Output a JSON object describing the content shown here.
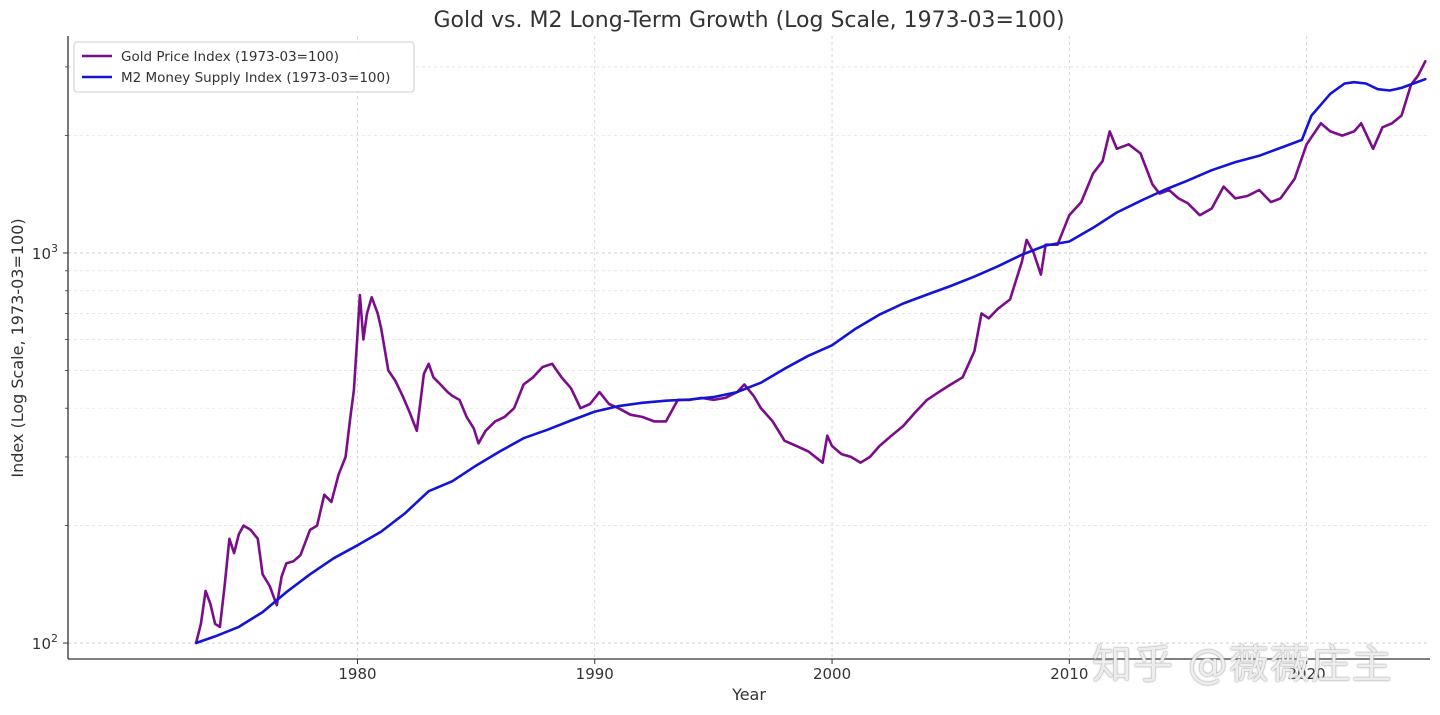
{
  "chart_data": {
    "type": "line",
    "title": "Gold vs. M2 Long-Term Growth (Log Scale, 1973-03=100)",
    "xlabel": "Year",
    "ylabel": "Index (Log Scale, 1973-03=100)",
    "xlim": [
      1967.8,
      2025.2
    ],
    "ylim_log": [
      91,
      3600
    ],
    "yscale": "log",
    "x_ticks": [
      {
        "value": 1980,
        "label": "1980"
      },
      {
        "value": 1990,
        "label": "1990"
      },
      {
        "value": 2000,
        "label": "2000"
      },
      {
        "value": 2010,
        "label": "2010"
      },
      {
        "value": 2020,
        "label": "2020"
      }
    ],
    "y_ticks": [
      {
        "value": 100,
        "base": "10",
        "exp": "2"
      },
      {
        "value": 1000,
        "base": "10",
        "exp": "3"
      }
    ],
    "grid": true,
    "legend_position": "top-left",
    "series": [
      {
        "name": "Gold Price Index (1973-03=100)",
        "color": "#7B0D8A",
        "points": [
          [
            1973.2,
            100
          ],
          [
            1973.4,
            112
          ],
          [
            1973.6,
            136
          ],
          [
            1973.8,
            126
          ],
          [
            1974.0,
            112
          ],
          [
            1974.2,
            110
          ],
          [
            1974.4,
            140
          ],
          [
            1974.6,
            185
          ],
          [
            1974.8,
            170
          ],
          [
            1975.0,
            190
          ],
          [
            1975.2,
            200
          ],
          [
            1975.5,
            195
          ],
          [
            1975.8,
            185
          ],
          [
            1976.0,
            150
          ],
          [
            1976.3,
            140
          ],
          [
            1976.6,
            125
          ],
          [
            1976.8,
            148
          ],
          [
            1977.0,
            160
          ],
          [
            1977.3,
            162
          ],
          [
            1977.6,
            168
          ],
          [
            1978.0,
            195
          ],
          [
            1978.3,
            200
          ],
          [
            1978.6,
            240
          ],
          [
            1978.9,
            230
          ],
          [
            1979.2,
            270
          ],
          [
            1979.5,
            300
          ],
          [
            1979.7,
            380
          ],
          [
            1979.85,
            445
          ],
          [
            1980.0,
            620
          ],
          [
            1980.1,
            780
          ],
          [
            1980.25,
            600
          ],
          [
            1980.4,
            700
          ],
          [
            1980.6,
            770
          ],
          [
            1980.85,
            700
          ],
          [
            1981.0,
            640
          ],
          [
            1981.3,
            500
          ],
          [
            1981.6,
            470
          ],
          [
            1981.9,
            430
          ],
          [
            1982.2,
            390
          ],
          [
            1982.5,
            350
          ],
          [
            1982.8,
            490
          ],
          [
            1983.0,
            520
          ],
          [
            1983.2,
            480
          ],
          [
            1983.5,
            460
          ],
          [
            1983.8,
            440
          ],
          [
            1984.0,
            430
          ],
          [
            1984.3,
            420
          ],
          [
            1984.6,
            380
          ],
          [
            1984.9,
            355
          ],
          [
            1985.1,
            325
          ],
          [
            1985.4,
            350
          ],
          [
            1985.8,
            370
          ],
          [
            1986.2,
            380
          ],
          [
            1986.6,
            400
          ],
          [
            1987.0,
            460
          ],
          [
            1987.4,
            480
          ],
          [
            1987.8,
            510
          ],
          [
            1988.2,
            520
          ],
          [
            1988.6,
            480
          ],
          [
            1989.0,
            450
          ],
          [
            1989.4,
            400
          ],
          [
            1989.8,
            410
          ],
          [
            1990.2,
            440
          ],
          [
            1990.6,
            410
          ],
          [
            1991.0,
            400
          ],
          [
            1991.5,
            385
          ],
          [
            1992.0,
            380
          ],
          [
            1992.5,
            370
          ],
          [
            1993.0,
            370
          ],
          [
            1993.5,
            420
          ],
          [
            1994.0,
            420
          ],
          [
            1994.5,
            425
          ],
          [
            1995.0,
            420
          ],
          [
            1995.5,
            425
          ],
          [
            1996.0,
            440
          ],
          [
            1996.3,
            460
          ],
          [
            1996.7,
            430
          ],
          [
            1997.0,
            400
          ],
          [
            1997.5,
            370
          ],
          [
            1998.0,
            330
          ],
          [
            1998.5,
            320
          ],
          [
            1999.0,
            310
          ],
          [
            1999.6,
            290
          ],
          [
            1999.8,
            340
          ],
          [
            2000.0,
            320
          ],
          [
            2000.4,
            305
          ],
          [
            2000.8,
            300
          ],
          [
            2001.2,
            290
          ],
          [
            2001.6,
            300
          ],
          [
            2002.0,
            320
          ],
          [
            2002.5,
            340
          ],
          [
            2003.0,
            360
          ],
          [
            2003.5,
            390
          ],
          [
            2004.0,
            420
          ],
          [
            2004.5,
            440
          ],
          [
            2005.0,
            460
          ],
          [
            2005.5,
            480
          ],
          [
            2006.0,
            560
          ],
          [
            2006.3,
            700
          ],
          [
            2006.6,
            680
          ],
          [
            2007.0,
            720
          ],
          [
            2007.5,
            760
          ],
          [
            2008.0,
            950
          ],
          [
            2008.2,
            1080
          ],
          [
            2008.5,
            1000
          ],
          [
            2008.8,
            880
          ],
          [
            2009.0,
            1050
          ],
          [
            2009.5,
            1050
          ],
          [
            2010.0,
            1250
          ],
          [
            2010.5,
            1350
          ],
          [
            2011.0,
            1600
          ],
          [
            2011.4,
            1720
          ],
          [
            2011.7,
            2050
          ],
          [
            2012.0,
            1850
          ],
          [
            2012.5,
            1900
          ],
          [
            2013.0,
            1800
          ],
          [
            2013.5,
            1500
          ],
          [
            2013.8,
            1420
          ],
          [
            2014.2,
            1450
          ],
          [
            2014.6,
            1380
          ],
          [
            2015.0,
            1340
          ],
          [
            2015.5,
            1250
          ],
          [
            2016.0,
            1300
          ],
          [
            2016.5,
            1480
          ],
          [
            2017.0,
            1380
          ],
          [
            2017.5,
            1400
          ],
          [
            2018.0,
            1450
          ],
          [
            2018.5,
            1350
          ],
          [
            2018.9,
            1380
          ],
          [
            2019.5,
            1550
          ],
          [
            2020.0,
            1900
          ],
          [
            2020.6,
            2150
          ],
          [
            2021.0,
            2050
          ],
          [
            2021.5,
            2000
          ],
          [
            2022.0,
            2050
          ],
          [
            2022.3,
            2150
          ],
          [
            2022.8,
            1850
          ],
          [
            2023.2,
            2100
          ],
          [
            2023.6,
            2150
          ],
          [
            2024.0,
            2250
          ],
          [
            2024.4,
            2700
          ],
          [
            2024.7,
            2850
          ],
          [
            2025.0,
            3100
          ]
        ]
      },
      {
        "name": "M2 Money Supply Index (1973-03=100)",
        "color": "#1414D8",
        "points": [
          [
            1973.2,
            100
          ],
          [
            1974.0,
            104
          ],
          [
            1975.0,
            110
          ],
          [
            1976.0,
            120
          ],
          [
            1977.0,
            135
          ],
          [
            1978.0,
            150
          ],
          [
            1979.0,
            165
          ],
          [
            1980.0,
            178
          ],
          [
            1981.0,
            193
          ],
          [
            1982.0,
            215
          ],
          [
            1983.0,
            245
          ],
          [
            1984.0,
            260
          ],
          [
            1985.0,
            285
          ],
          [
            1986.0,
            310
          ],
          [
            1987.0,
            335
          ],
          [
            1988.0,
            352
          ],
          [
            1989.0,
            372
          ],
          [
            1990.0,
            392
          ],
          [
            1991.0,
            405
          ],
          [
            1992.0,
            413
          ],
          [
            1993.0,
            418
          ],
          [
            1994.0,
            421
          ],
          [
            1995.0,
            427
          ],
          [
            1996.0,
            440
          ],
          [
            1997.0,
            465
          ],
          [
            1998.0,
            505
          ],
          [
            1999.0,
            545
          ],
          [
            2000.0,
            580
          ],
          [
            2001.0,
            640
          ],
          [
            2002.0,
            695
          ],
          [
            2003.0,
            742
          ],
          [
            2004.0,
            782
          ],
          [
            2005.0,
            823
          ],
          [
            2006.0,
            870
          ],
          [
            2007.0,
            925
          ],
          [
            2008.0,
            990
          ],
          [
            2009.0,
            1045
          ],
          [
            2010.0,
            1070
          ],
          [
            2011.0,
            1160
          ],
          [
            2012.0,
            1270
          ],
          [
            2013.0,
            1360
          ],
          [
            2014.0,
            1450
          ],
          [
            2015.0,
            1535
          ],
          [
            2016.0,
            1630
          ],
          [
            2017.0,
            1710
          ],
          [
            2018.0,
            1775
          ],
          [
            2019.0,
            1870
          ],
          [
            2019.8,
            1950
          ],
          [
            2020.2,
            2250
          ],
          [
            2020.6,
            2400
          ],
          [
            2021.0,
            2560
          ],
          [
            2021.6,
            2720
          ],
          [
            2022.0,
            2740
          ],
          [
            2022.5,
            2720
          ],
          [
            2023.0,
            2630
          ],
          [
            2023.5,
            2610
          ],
          [
            2024.0,
            2650
          ],
          [
            2024.5,
            2720
          ],
          [
            2025.0,
            2790
          ]
        ]
      }
    ]
  },
  "watermark": "知乎 @薇薇庄主"
}
